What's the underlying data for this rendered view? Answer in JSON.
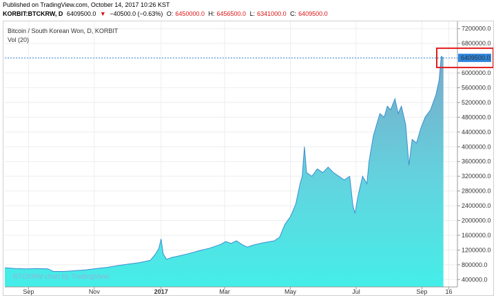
{
  "header": {
    "published": "Published on TradingView.com, October 14, 2017 10:26 KST",
    "symbol": "KORBIT:BTCKRW, D",
    "last": "6409500.0",
    "change_arrow": "▼",
    "change": "−40500.0 (−0.63%)",
    "open_label": "O:",
    "open": "6450000.0",
    "high_label": "H:",
    "high": "6456500.0",
    "low_label": "L:",
    "low": "6341000.0",
    "close_label": "C:",
    "close": "6409500.0"
  },
  "legend": {
    "title": "Bitcoin / South Korean Won, D, KORBIT",
    "volume": "Vol (20)"
  },
  "watermark": "BTCKRW chart by TradingView",
  "price_label": "6409500.0",
  "colors": {
    "area_fill_top": "#7fb8d6",
    "area_fill_bottom": "#3fe0e0",
    "line": "#3a8fd0",
    "price_label_bg": "#2e86de",
    "highlight_box": "#e21b1b",
    "volume": "#9fd0c8"
  },
  "chart_data": {
    "type": "area",
    "title": "Bitcoin / South Korean Won, D, KORBIT",
    "ylim": [
      200000,
      7400000
    ],
    "y_ticks": [
      "7200000.0",
      "6800000.0",
      "6400000.0",
      "6000000.0",
      "5600000.0",
      "5200000.0",
      "4800000.0",
      "4400000.0",
      "4000000.0",
      "3600000.0",
      "3200000.0",
      "2800000.0",
      "2400000.0",
      "2000000.0",
      "1600000.0",
      "1200000.0",
      "800000.0",
      "400000.0"
    ],
    "x_ticks": [
      "Sep",
      "Nov",
      "2017",
      "Mar",
      "May",
      "Jul",
      "Sep",
      "16"
    ],
    "x_tick_days": [
      22,
      83,
      145,
      204,
      265,
      326,
      387,
      412
    ],
    "x_range_days": [
      0,
      420
    ],
    "series": [
      {
        "points": [
          [
            0,
            720000
          ],
          [
            10,
            700000
          ],
          [
            20,
            690000
          ],
          [
            30,
            700000
          ],
          [
            40,
            690000
          ],
          [
            45,
            620000
          ],
          [
            55,
            620000
          ],
          [
            65,
            640000
          ],
          [
            75,
            660000
          ],
          [
            85,
            700000
          ],
          [
            95,
            730000
          ],
          [
            105,
            780000
          ],
          [
            115,
            820000
          ],
          [
            125,
            860000
          ],
          [
            135,
            920000
          ],
          [
            140,
            1100000
          ],
          [
            143,
            1250000
          ],
          [
            145,
            1500000
          ],
          [
            147,
            1100000
          ],
          [
            150,
            950000
          ],
          [
            155,
            1000000
          ],
          [
            160,
            1030000
          ],
          [
            170,
            1100000
          ],
          [
            180,
            1180000
          ],
          [
            190,
            1250000
          ],
          [
            200,
            1350000
          ],
          [
            205,
            1430000
          ],
          [
            210,
            1380000
          ],
          [
            215,
            1450000
          ],
          [
            220,
            1350000
          ],
          [
            225,
            1280000
          ],
          [
            230,
            1330000
          ],
          [
            240,
            1400000
          ],
          [
            250,
            1450000
          ],
          [
            255,
            1550000
          ],
          [
            260,
            1900000
          ],
          [
            265,
            2100000
          ],
          [
            270,
            2450000
          ],
          [
            274,
            3000000
          ],
          [
            276,
            3200000
          ],
          [
            278,
            4000000
          ],
          [
            280,
            3300000
          ],
          [
            285,
            3200000
          ],
          [
            290,
            3400000
          ],
          [
            295,
            3300000
          ],
          [
            300,
            3450000
          ],
          [
            305,
            3300000
          ],
          [
            310,
            3200000
          ],
          [
            315,
            3100000
          ],
          [
            320,
            3200000
          ],
          [
            323,
            2400000
          ],
          [
            325,
            2200000
          ],
          [
            328,
            2700000
          ],
          [
            332,
            3200000
          ],
          [
            336,
            3000000
          ],
          [
            338,
            3600000
          ],
          [
            342,
            4300000
          ],
          [
            345,
            4600000
          ],
          [
            348,
            4900000
          ],
          [
            352,
            4800000
          ],
          [
            355,
            5100000
          ],
          [
            358,
            5000000
          ],
          [
            362,
            5300000
          ],
          [
            365,
            4900000
          ],
          [
            368,
            5100000
          ],
          [
            372,
            4600000
          ],
          [
            375,
            3500000
          ],
          [
            378,
            4200000
          ],
          [
            382,
            4100000
          ],
          [
            386,
            4500000
          ],
          [
            390,
            4800000
          ],
          [
            395,
            5000000
          ],
          [
            400,
            5400000
          ],
          [
            403,
            5800000
          ],
          [
            405,
            6450000
          ],
          [
            407,
            6409500
          ]
        ]
      }
    ],
    "last_value": 6409500.0,
    "grid": true,
    "legend_position": "top-left",
    "volume_series": true
  }
}
